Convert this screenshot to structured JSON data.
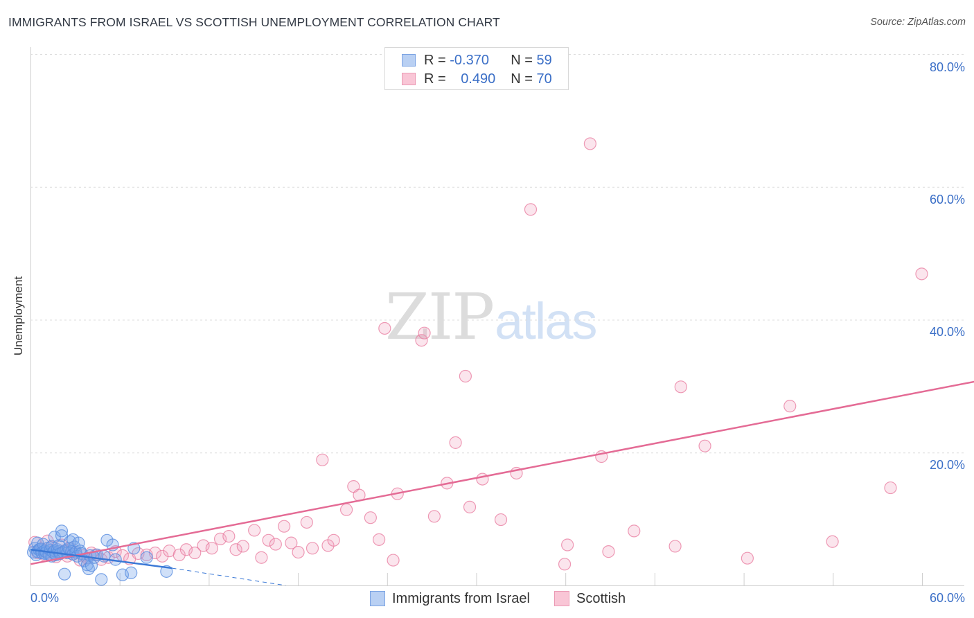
{
  "header": {
    "title": "IMMIGRANTS FROM ISRAEL VS SCOTTISH UNEMPLOYMENT CORRELATION CHART",
    "source": "Source: ZipAtlas.com"
  },
  "legend": {
    "r_label": "R =",
    "n_label": "N =",
    "series1": {
      "r": "-0.370",
      "n": "59"
    },
    "series2": {
      "r": "0.490",
      "n": "70"
    }
  },
  "watermark": {
    "zip": "ZIP",
    "atlas": "atlas"
  },
  "axes": {
    "ylabel": "Unemployment",
    "yticks": [
      "80.0%",
      "60.0%",
      "40.0%",
      "20.0%"
    ],
    "xmin_label": "0.0%",
    "xmax_label": "60.0%"
  },
  "bottom_legend": {
    "series1": "Immigrants from Israel",
    "series2": "Scottish"
  },
  "colors": {
    "blue": "#5b8fe0",
    "blue_fill": "rgba(120,165,235,0.35)",
    "pink": "#e8799e",
    "pink_fill": "rgba(240,160,190,0.28)",
    "blue_line": "#3a78d6",
    "pink_line": "#e46b95",
    "tick_text": "#3b6fc7"
  },
  "chart_data": {
    "type": "scatter",
    "title": "IMMIGRANTS FROM ISRAEL VS SCOTTISH UNEMPLOYMENT CORRELATION CHART",
    "xlabel": "",
    "ylabel": "Unemployment",
    "xlim": [
      0,
      60
    ],
    "ylim": [
      0,
      80
    ],
    "grid": true,
    "series": [
      {
        "name": "Immigrants from Israel",
        "r": -0.37,
        "n": 59,
        "points": [
          [
            0.2,
            5.0
          ],
          [
            0.3,
            5.6
          ],
          [
            0.4,
            4.6
          ],
          [
            0.5,
            6.4
          ],
          [
            0.5,
            5.1
          ],
          [
            0.6,
            5.4
          ],
          [
            0.7,
            5.5
          ],
          [
            0.8,
            4.9
          ],
          [
            0.9,
            6.2
          ],
          [
            1.0,
            5.2
          ],
          [
            1.0,
            4.8
          ],
          [
            1.1,
            5.0
          ],
          [
            1.2,
            5.6
          ],
          [
            1.3,
            4.7
          ],
          [
            1.4,
            5.3
          ],
          [
            1.5,
            5.9
          ],
          [
            1.5,
            4.4
          ],
          [
            1.6,
            5.0
          ],
          [
            1.7,
            7.3
          ],
          [
            1.7,
            5.2
          ],
          [
            1.8,
            4.6
          ],
          [
            1.9,
            5.4
          ],
          [
            2.0,
            5.1
          ],
          [
            2.0,
            6.0
          ],
          [
            2.1,
            4.8
          ],
          [
            2.2,
            7.5
          ],
          [
            2.2,
            8.2
          ],
          [
            2.3,
            5.0
          ],
          [
            2.4,
            1.7
          ],
          [
            2.5,
            5.3
          ],
          [
            2.6,
            4.9
          ],
          [
            2.7,
            5.6
          ],
          [
            2.8,
            6.6
          ],
          [
            2.9,
            5.1
          ],
          [
            3.0,
            4.7
          ],
          [
            3.0,
            6.9
          ],
          [
            3.1,
            5.8
          ],
          [
            3.2,
            5.0
          ],
          [
            3.3,
            4.4
          ],
          [
            3.4,
            6.4
          ],
          [
            3.5,
            5.2
          ],
          [
            3.6,
            4.8
          ],
          [
            3.8,
            3.7
          ],
          [
            4.0,
            3.1
          ],
          [
            4.1,
            2.5
          ],
          [
            4.2,
            4.5
          ],
          [
            4.3,
            3.0
          ],
          [
            4.5,
            4.2
          ],
          [
            4.7,
            4.6
          ],
          [
            5.0,
            0.9
          ],
          [
            5.2,
            4.4
          ],
          [
            5.4,
            6.8
          ],
          [
            5.8,
            6.1
          ],
          [
            6.0,
            3.9
          ],
          [
            6.5,
            1.6
          ],
          [
            7.1,
            1.9
          ],
          [
            7.3,
            5.6
          ],
          [
            8.2,
            4.2
          ],
          [
            9.6,
            2.1
          ]
        ],
        "trend": {
          "x": [
            0,
            10
          ],
          "y": [
            5.4,
            2.6
          ]
        },
        "trend_dashed": {
          "x": [
            10,
            18
          ],
          "y": [
            2.6,
            0.0
          ]
        }
      },
      {
        "name": "Scottish",
        "r": 0.49,
        "n": 70,
        "points": [
          [
            0.3,
            6.5
          ],
          [
            0.5,
            4.9
          ],
          [
            0.8,
            5.5
          ],
          [
            1.0,
            4.6
          ],
          [
            1.2,
            6.7
          ],
          [
            1.3,
            5.0
          ],
          [
            1.5,
            5.8
          ],
          [
            1.8,
            4.3
          ],
          [
            2.0,
            4.8
          ],
          [
            2.2,
            6.1
          ],
          [
            2.4,
            5.2
          ],
          [
            2.6,
            4.4
          ],
          [
            2.8,
            5.6
          ],
          [
            3.0,
            4.7
          ],
          [
            3.2,
            5.0
          ],
          [
            3.5,
            3.8
          ],
          [
            3.7,
            4.5
          ],
          [
            4.0,
            4.1
          ],
          [
            4.3,
            4.9
          ],
          [
            4.6,
            4.6
          ],
          [
            5.0,
            3.9
          ],
          [
            5.5,
            4.2
          ],
          [
            6.0,
            5.1
          ],
          [
            6.5,
            4.5
          ],
          [
            7.0,
            4.0
          ],
          [
            7.6,
            4.8
          ],
          [
            8.2,
            4.6
          ],
          [
            8.8,
            4.9
          ],
          [
            9.3,
            4.4
          ],
          [
            9.8,
            5.2
          ],
          [
            10.5,
            4.6
          ],
          [
            11.0,
            5.4
          ],
          [
            11.6,
            4.9
          ],
          [
            12.2,
            6.0
          ],
          [
            12.8,
            5.6
          ],
          [
            13.4,
            7.0
          ],
          [
            14.0,
            7.4
          ],
          [
            14.5,
            5.4
          ],
          [
            15.0,
            5.9
          ],
          [
            15.8,
            8.3
          ],
          [
            16.3,
            4.2
          ],
          [
            16.8,
            6.8
          ],
          [
            17.3,
            6.2
          ],
          [
            17.9,
            8.9
          ],
          [
            18.4,
            6.4
          ],
          [
            18.9,
            5.0
          ],
          [
            19.5,
            9.5
          ],
          [
            19.9,
            5.6
          ],
          [
            20.6,
            18.9
          ],
          [
            21.0,
            6.0
          ],
          [
            21.4,
            6.8
          ],
          [
            22.3,
            11.4
          ],
          [
            22.8,
            14.9
          ],
          [
            23.2,
            13.6
          ],
          [
            24.0,
            10.2
          ],
          [
            24.6,
            6.9
          ],
          [
            25.0,
            38.7
          ],
          [
            25.6,
            3.8
          ],
          [
            25.9,
            13.8
          ],
          [
            27.6,
            36.9
          ],
          [
            27.8,
            38.0
          ],
          [
            28.5,
            10.4
          ],
          [
            29.4,
            15.4
          ],
          [
            30.0,
            21.5
          ],
          [
            30.7,
            31.5
          ],
          [
            31.0,
            11.8
          ],
          [
            31.9,
            16.0
          ],
          [
            33.2,
            9.9
          ],
          [
            34.3,
            16.9
          ],
          [
            35.3,
            56.6
          ]
        ],
        "extra_points": [
          [
            37.7,
            3.2
          ],
          [
            37.9,
            6.1
          ],
          [
            39.5,
            66.5
          ],
          [
            40.3,
            19.4
          ],
          [
            40.8,
            5.1
          ],
          [
            42.6,
            8.2
          ],
          [
            45.5,
            5.9
          ],
          [
            45.9,
            29.9
          ],
          [
            47.6,
            21.0
          ],
          [
            50.6,
            4.1
          ],
          [
            53.6,
            27.0
          ],
          [
            56.6,
            6.6
          ],
          [
            60.7,
            14.7
          ],
          [
            62.9,
            46.9
          ]
        ],
        "trend": {
          "x": [
            0,
            67.4
          ],
          "y": [
            3.2,
            31.0
          ]
        }
      }
    ]
  }
}
